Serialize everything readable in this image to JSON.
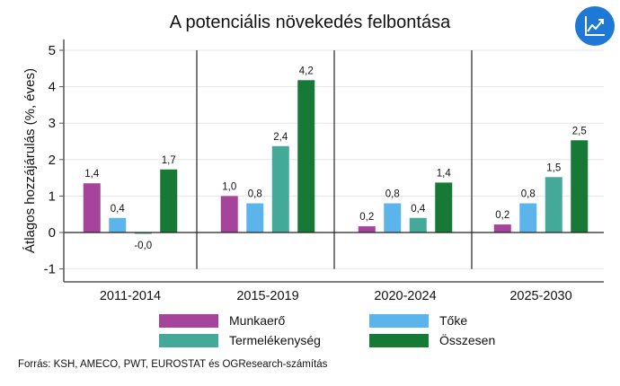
{
  "header": {
    "title": "A potenciális növekedés felbontása",
    "icon": "trend-chart-icon",
    "icon_color": "#1e78d6"
  },
  "footer": {
    "source": "Forrás: KSH, AMECO, PWT, EUROSTAT és OGResearch-számítás"
  },
  "chart_data": {
    "type": "bar",
    "title": "A potenciális növekedés felbontása",
    "xlabel": "",
    "ylabel": "Átlagos hozzájárulás (%, éves)",
    "ylim": [
      -1.35,
      5.35
    ],
    "yticks": [
      -1,
      0,
      1,
      2,
      3,
      4,
      5
    ],
    "ytick_labels": [
      "-1",
      "0",
      "1",
      "2",
      "3",
      "4",
      "5"
    ],
    "grid": true,
    "categories": [
      "2011-2014",
      "2015-2019",
      "2020-2024",
      "2025-2030"
    ],
    "series": [
      {
        "name": "Munkaerő",
        "color": "#a6449c",
        "values": [
          1.35,
          1.0,
          0.17,
          0.22
        ],
        "labels": [
          "1,4",
          "1,0",
          "0,2",
          "0,2"
        ]
      },
      {
        "name": "Tőke",
        "color": "#5bb5ea",
        "values": [
          0.4,
          0.8,
          0.8,
          0.8
        ],
        "labels": [
          "0,4",
          "0,8",
          "0,8",
          "0,8"
        ]
      },
      {
        "name": "Termelékenység",
        "color": "#45a99a",
        "values": [
          -0.02,
          2.37,
          0.4,
          1.52
        ],
        "labels": [
          "-0,0",
          "2,4",
          "0,4",
          "1,5"
        ]
      },
      {
        "name": "Összesen",
        "color": "#167a36",
        "values": [
          1.73,
          4.18,
          1.37,
          2.53
        ],
        "labels": [
          "1,7",
          "4,2",
          "1,4",
          "2,5"
        ]
      }
    ],
    "legend": {
      "position": "bottom",
      "order": [
        0,
        1,
        2,
        3
      ]
    }
  }
}
